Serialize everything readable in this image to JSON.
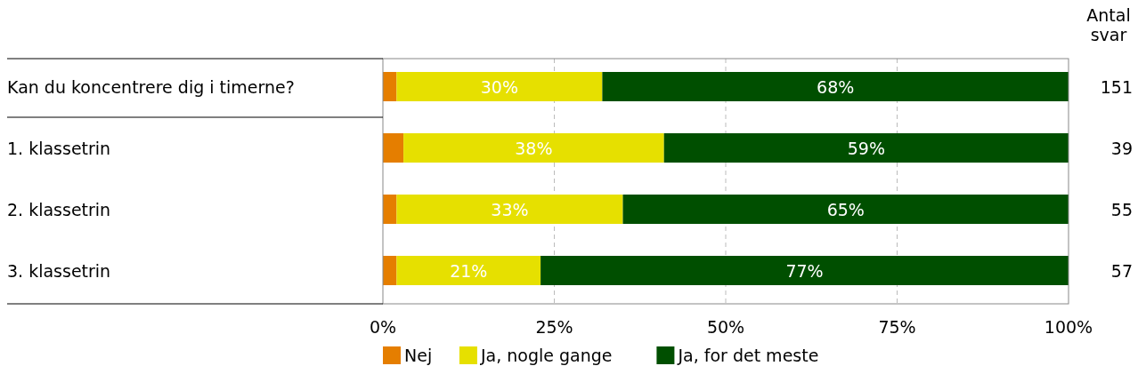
{
  "chart_data": {
    "type": "bar",
    "orientation": "horizontal",
    "stacked": true,
    "categories": [
      "Kan du koncentrere dig i timerne?",
      "1. klassetrin",
      "2. klassetrin",
      "3. klassetrin"
    ],
    "series": [
      {
        "name": "Nej",
        "color": "#e57e00",
        "values": [
          2,
          3,
          2,
          2
        ],
        "value_labels": [
          null,
          null,
          null,
          null
        ]
      },
      {
        "name": "Ja, nogle gange",
        "color": "#e6e000",
        "values": [
          30,
          38,
          33,
          21
        ],
        "value_labels": [
          "30%",
          "38%",
          "33%",
          "21%"
        ]
      },
      {
        "name": "Ja, for det meste",
        "color": "#004f00",
        "values": [
          68,
          59,
          65,
          77
        ],
        "value_labels": [
          "68%",
          "59%",
          "65%",
          "77%"
        ]
      }
    ],
    "xlim": [
      0,
      100
    ],
    "xticks": [
      {
        "value": 0,
        "label": "0%"
      },
      {
        "value": 25,
        "label": "25%"
      },
      {
        "value": 50,
        "label": "50%"
      },
      {
        "value": 75,
        "label": "75%"
      },
      {
        "value": 100,
        "label": "100%"
      }
    ],
    "grid": "x",
    "legend": "bottom",
    "annotations": [
      "Antal svar",
      "151",
      "39",
      "55",
      "57"
    ]
  }
}
